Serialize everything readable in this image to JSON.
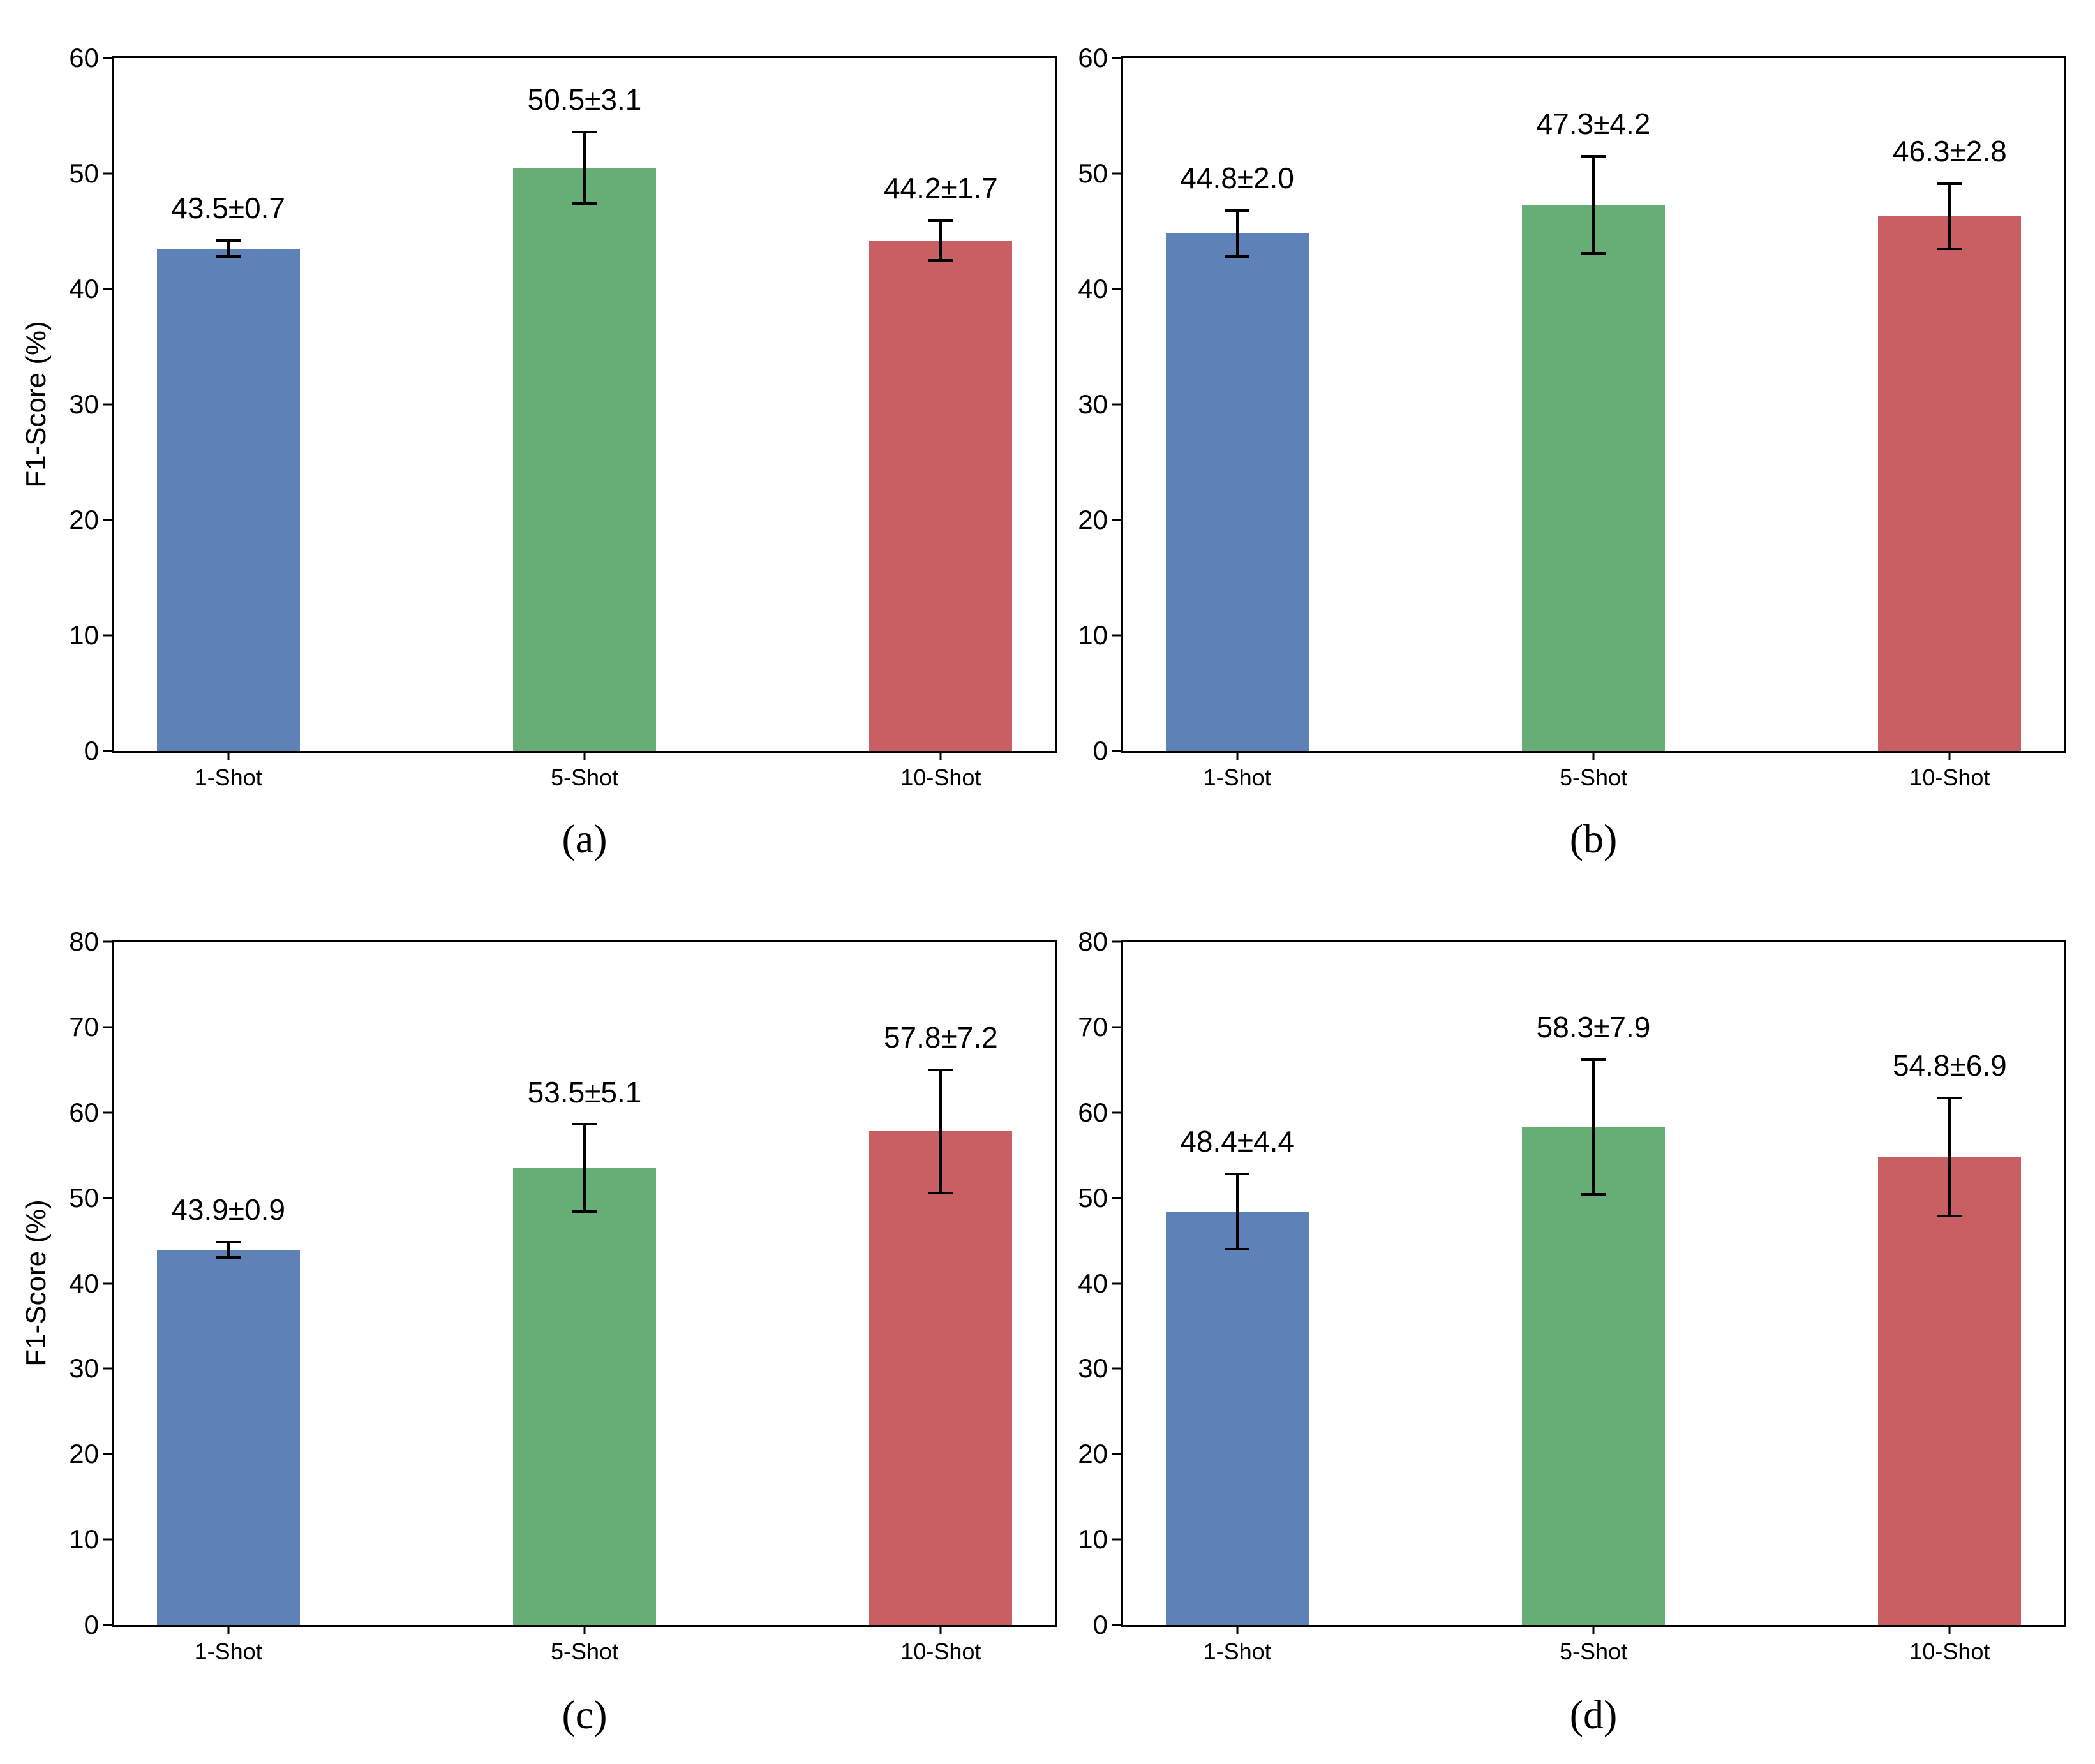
{
  "figure": {
    "background": "#ffffff",
    "axis_color": "#000000",
    "bar_colors": [
      "#5e81b8",
      "#66ad76",
      "#c85f62"
    ],
    "bar_color_names": [
      "blue",
      "green",
      "red"
    ]
  },
  "chart_data": [
    {
      "panel": "(a)",
      "type": "bar",
      "categories": [
        "1-Shot",
        "5-Shot",
        "10-Shot"
      ],
      "values": [
        43.5,
        50.5,
        44.2
      ],
      "errors": [
        0.7,
        3.1,
        1.7
      ],
      "bar_labels": [
        "43.5±0.7",
        "50.5±3.1",
        "44.2±1.7"
      ],
      "ylabel": "F1-Score (%)",
      "xlabel": "",
      "ylim": [
        0,
        60
      ],
      "yticks": [
        0,
        10,
        20,
        30,
        40,
        50,
        60
      ],
      "grid": false,
      "error_bars": true,
      "legend": ""
    },
    {
      "panel": "(b)",
      "type": "bar",
      "categories": [
        "1-Shot",
        "5-Shot",
        "10-Shot"
      ],
      "values": [
        44.8,
        47.3,
        46.3
      ],
      "errors": [
        2.0,
        4.2,
        2.8
      ],
      "bar_labels": [
        "44.8±2.0",
        "47.3±4.2",
        "46.3±2.8"
      ],
      "ylabel": "",
      "xlabel": "",
      "ylim": [
        0,
        60
      ],
      "yticks": [
        0,
        10,
        20,
        30,
        40,
        50,
        60
      ],
      "grid": false,
      "error_bars": true,
      "legend": ""
    },
    {
      "panel": "(c)",
      "type": "bar",
      "categories": [
        "1-Shot",
        "5-Shot",
        "10-Shot"
      ],
      "values": [
        43.9,
        53.5,
        57.8
      ],
      "errors": [
        0.9,
        5.1,
        7.2
      ],
      "bar_labels": [
        "43.9±0.9",
        "53.5±5.1",
        "57.8±7.2"
      ],
      "ylabel": "F1-Score (%)",
      "xlabel": "",
      "ylim": [
        0,
        80
      ],
      "yticks": [
        0,
        10,
        20,
        30,
        40,
        50,
        60,
        70,
        80
      ],
      "grid": false,
      "error_bars": true,
      "legend": ""
    },
    {
      "panel": "(d)",
      "type": "bar",
      "categories": [
        "1-Shot",
        "5-Shot",
        "10-Shot"
      ],
      "values": [
        48.4,
        58.3,
        54.8
      ],
      "errors": [
        4.4,
        7.9,
        6.9
      ],
      "bar_labels": [
        "48.4±4.4",
        "58.3±7.9",
        "54.8±6.9"
      ],
      "ylabel": "",
      "xlabel": "",
      "ylim": [
        0,
        80
      ],
      "yticks": [
        0,
        10,
        20,
        30,
        40,
        50,
        60,
        70,
        80
      ],
      "grid": false,
      "error_bars": true,
      "legend": ""
    }
  ]
}
